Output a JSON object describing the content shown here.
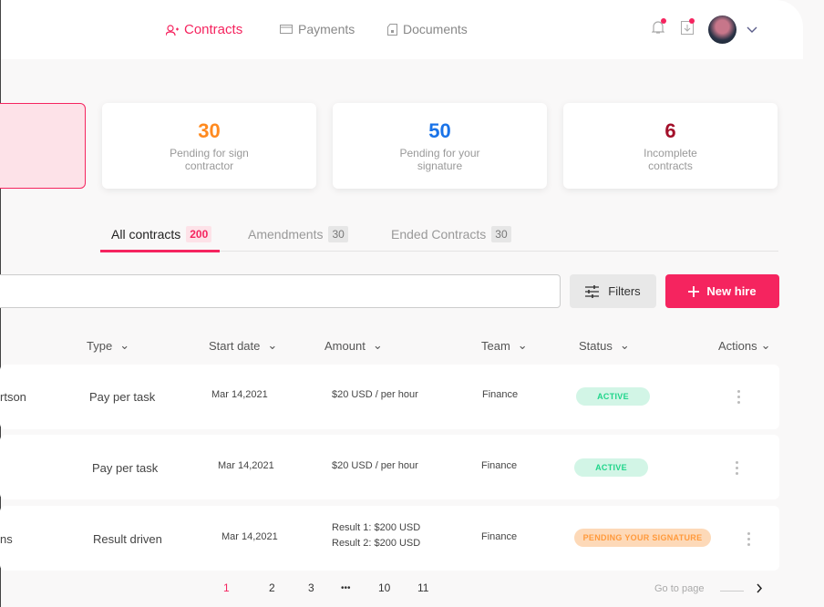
{
  "nav": {
    "items": [
      {
        "label": "Contracts",
        "icon": "user-plus-icon",
        "active": true
      },
      {
        "label": "Payments",
        "icon": "credit-card-icon"
      },
      {
        "label": "Documents",
        "icon": "document-icon"
      }
    ]
  },
  "header": {
    "notifications_icon": "bell-icon",
    "downloads_icon": "download-icon",
    "avatar": "user-avatar"
  },
  "stats": [
    {
      "value": "30",
      "label": "Pending for sign contractor",
      "color": "#ff8a1f"
    },
    {
      "value": "50",
      "label": "Pending for your signature",
      "color": "#1a73e8"
    },
    {
      "value": "6",
      "label": "Incomplete contracts",
      "color": "#a3102a"
    }
  ],
  "tabs": [
    {
      "label": "All contracts",
      "count": "200"
    },
    {
      "label": "Amendments",
      "count": "30"
    },
    {
      "label": "Ended Contracts",
      "count": "30"
    }
  ],
  "toolbar": {
    "search_placeholder": "",
    "filters_label": "Filters",
    "new_hire_label": "New hire"
  },
  "columns": [
    "Type",
    "Start date",
    "Amount",
    "Team",
    "Status",
    "Actions"
  ],
  "rows": [
    {
      "name": "rtson",
      "type": "Pay per task",
      "start": "Mar 14,2021",
      "amount": [
        "$20 USD / per hour"
      ],
      "team": "Finance",
      "status": "ACTIVE"
    },
    {
      "name": "",
      "type": "Pay per task",
      "start": "Mar 14,2021",
      "amount": [
        "$20 USD / per hour"
      ],
      "team": "Finance",
      "status": "ACTIVE"
    },
    {
      "name": "ns",
      "type": "Result driven",
      "start": "Mar 14,2021",
      "amount": [
        "Result 1: $200 USD",
        "Result 2: $200 USD"
      ],
      "team": "Finance",
      "status": "PENDING YOUR SIGNATURE"
    }
  ],
  "pagination": {
    "pages": [
      "1",
      "2",
      "3",
      "•••",
      "10",
      "11"
    ],
    "current": "1",
    "goto_label": "Go to page"
  },
  "colors": {
    "accent": "#f5245f",
    "active_bg": "#d2f5e6",
    "active_text": "#1fd58a",
    "pending_bg": "#fdd9b8",
    "pending_text": "#ff9a3c"
  }
}
